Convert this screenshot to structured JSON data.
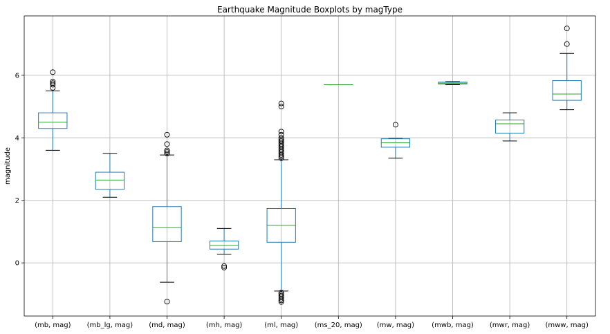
{
  "chart_data": {
    "type": "boxplot",
    "title": "Earthquake Magnitude Boxplots by magType",
    "xlabel": "",
    "ylabel": "magnitude",
    "ylim": [
      -1.7,
      7.9
    ],
    "yticks": [
      0,
      2,
      4,
      6
    ],
    "grid": true,
    "colors": {
      "box": "#1f77b4",
      "median": "#2ca02c",
      "whisker": "#000000",
      "grid": "#b0b0b0"
    },
    "categories": [
      "(mb, mag)",
      "(mb_lg, mag)",
      "(md, mag)",
      "(mh, mag)",
      "(ml, mag)",
      "(ms_20, mag)",
      "(mw, mag)",
      "(mwb, mag)",
      "(mwr, mag)",
      "(mww, mag)"
    ],
    "boxes": [
      {
        "label": "(mb, mag)",
        "whislo": 3.6,
        "q1": 4.3,
        "med": 4.5,
        "q3": 4.8,
        "whishi": 5.5,
        "fliers": [
          5.6,
          5.7,
          5.75,
          5.8,
          6.1
        ]
      },
      {
        "label": "(mb_lg, mag)",
        "whislo": 2.1,
        "q1": 2.35,
        "med": 2.65,
        "q3": 2.9,
        "whishi": 3.5,
        "fliers": []
      },
      {
        "label": "(md, mag)",
        "whislo": -0.62,
        "q1": 0.68,
        "med": 1.13,
        "q3": 1.8,
        "whishi": 3.45,
        "fliers": [
          -1.24,
          3.5,
          3.55,
          3.6,
          3.8,
          4.1
        ]
      },
      {
        "label": "(mh, mag)",
        "whislo": 0.28,
        "q1": 0.44,
        "med": 0.56,
        "q3": 0.7,
        "whishi": 1.1,
        "fliers": [
          -0.1,
          -0.15
        ]
      },
      {
        "label": "(ml, mag)",
        "whislo": -0.9,
        "q1": 0.66,
        "med": 1.2,
        "q3": 1.74,
        "whishi": 3.3,
        "fliers": [
          -1.25,
          -1.2,
          -1.15,
          -1.1,
          -1.05,
          -1.0,
          -0.95,
          3.35,
          3.4,
          3.45,
          3.5,
          3.55,
          3.6,
          3.65,
          3.7,
          3.75,
          3.8,
          3.85,
          3.9,
          3.95,
          4.0,
          4.1,
          4.2,
          5.0,
          5.1
        ]
      },
      {
        "label": "(ms_20, mag)",
        "whislo": 5.7,
        "q1": 5.7,
        "med": 5.7,
        "q3": 5.7,
        "whishi": 5.7,
        "fliers": []
      },
      {
        "label": "(mw, mag)",
        "whislo": 3.35,
        "q1": 3.7,
        "med": 3.84,
        "q3": 3.97,
        "whishi": 3.98,
        "fliers": [
          4.42
        ]
      },
      {
        "label": "(mwb, mag)",
        "whislo": 5.7,
        "q1": 5.72,
        "med": 5.75,
        "q3": 5.78,
        "whishi": 5.8,
        "fliers": []
      },
      {
        "label": "(mwr, mag)",
        "whislo": 3.9,
        "q1": 4.15,
        "med": 4.45,
        "q3": 4.57,
        "whishi": 4.8,
        "fliers": []
      },
      {
        "label": "(mww, mag)",
        "whislo": 4.9,
        "q1": 5.2,
        "med": 5.4,
        "q3": 5.83,
        "whishi": 6.7,
        "fliers": [
          7.0,
          7.5
        ]
      }
    ]
  }
}
